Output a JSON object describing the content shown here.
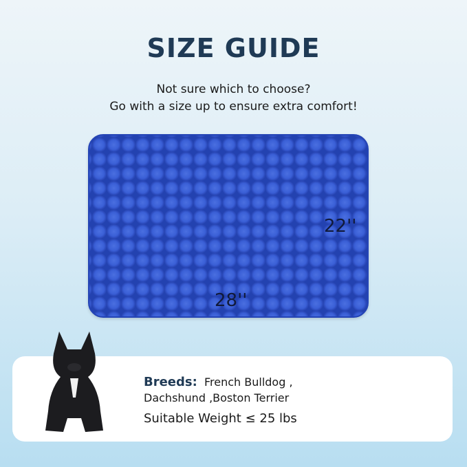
{
  "title": "SIZE GUIDE",
  "subtitle": [
    "Not sure which to choose?",
    "Go with a size up to ensure extra comfort!"
  ],
  "product": {
    "color": "#2f52c9",
    "height_label": "22''",
    "width_label": "28''"
  },
  "info": {
    "breeds_label": "Breeds:",
    "breeds_line1": "French Bulldog ,",
    "breeds_line2": "Dachshund ,Boston Terrier",
    "weight": "Suitable Weight ≤ 25 lbs"
  }
}
